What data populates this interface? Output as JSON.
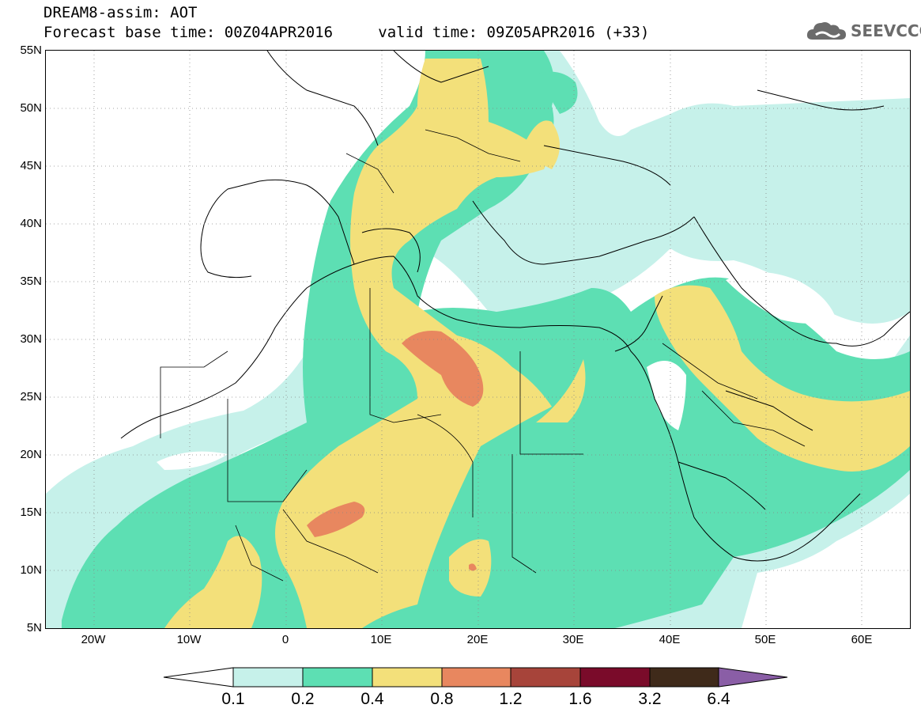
{
  "header": {
    "title": "DREAM8-assim: AOT",
    "base_time_label": "Forecast base time: 00Z04APR2016",
    "valid_time_label": "valid time: 09Z05APR2016 (+33)"
  },
  "logo": {
    "text": "SEEVCCC",
    "icon": "cloud-icon"
  },
  "axes": {
    "lat_labels": [
      "55N",
      "50N",
      "45N",
      "40N",
      "35N",
      "30N",
      "25N",
      "20N",
      "15N",
      "10N",
      "5N"
    ],
    "lon_labels": [
      "20W",
      "10W",
      "0",
      "10E",
      "20E",
      "30E",
      "40E",
      "50E",
      "60E"
    ],
    "lat_range": [
      5,
      55
    ],
    "lon_range": [
      -25,
      65
    ],
    "grid": "dotted"
  },
  "legend": {
    "labels": [
      "0.1",
      "0.2",
      "0.4",
      "0.8",
      "1.2",
      "1.6",
      "3.2",
      "6.4"
    ],
    "colors": [
      "#ffffff",
      "#c6f1ea",
      "#5ddfb3",
      "#f3e07a",
      "#e8875f",
      "#a7443a",
      "#7a0b2a",
      "#3f2a1a",
      "#8a5ea6"
    ]
  }
}
